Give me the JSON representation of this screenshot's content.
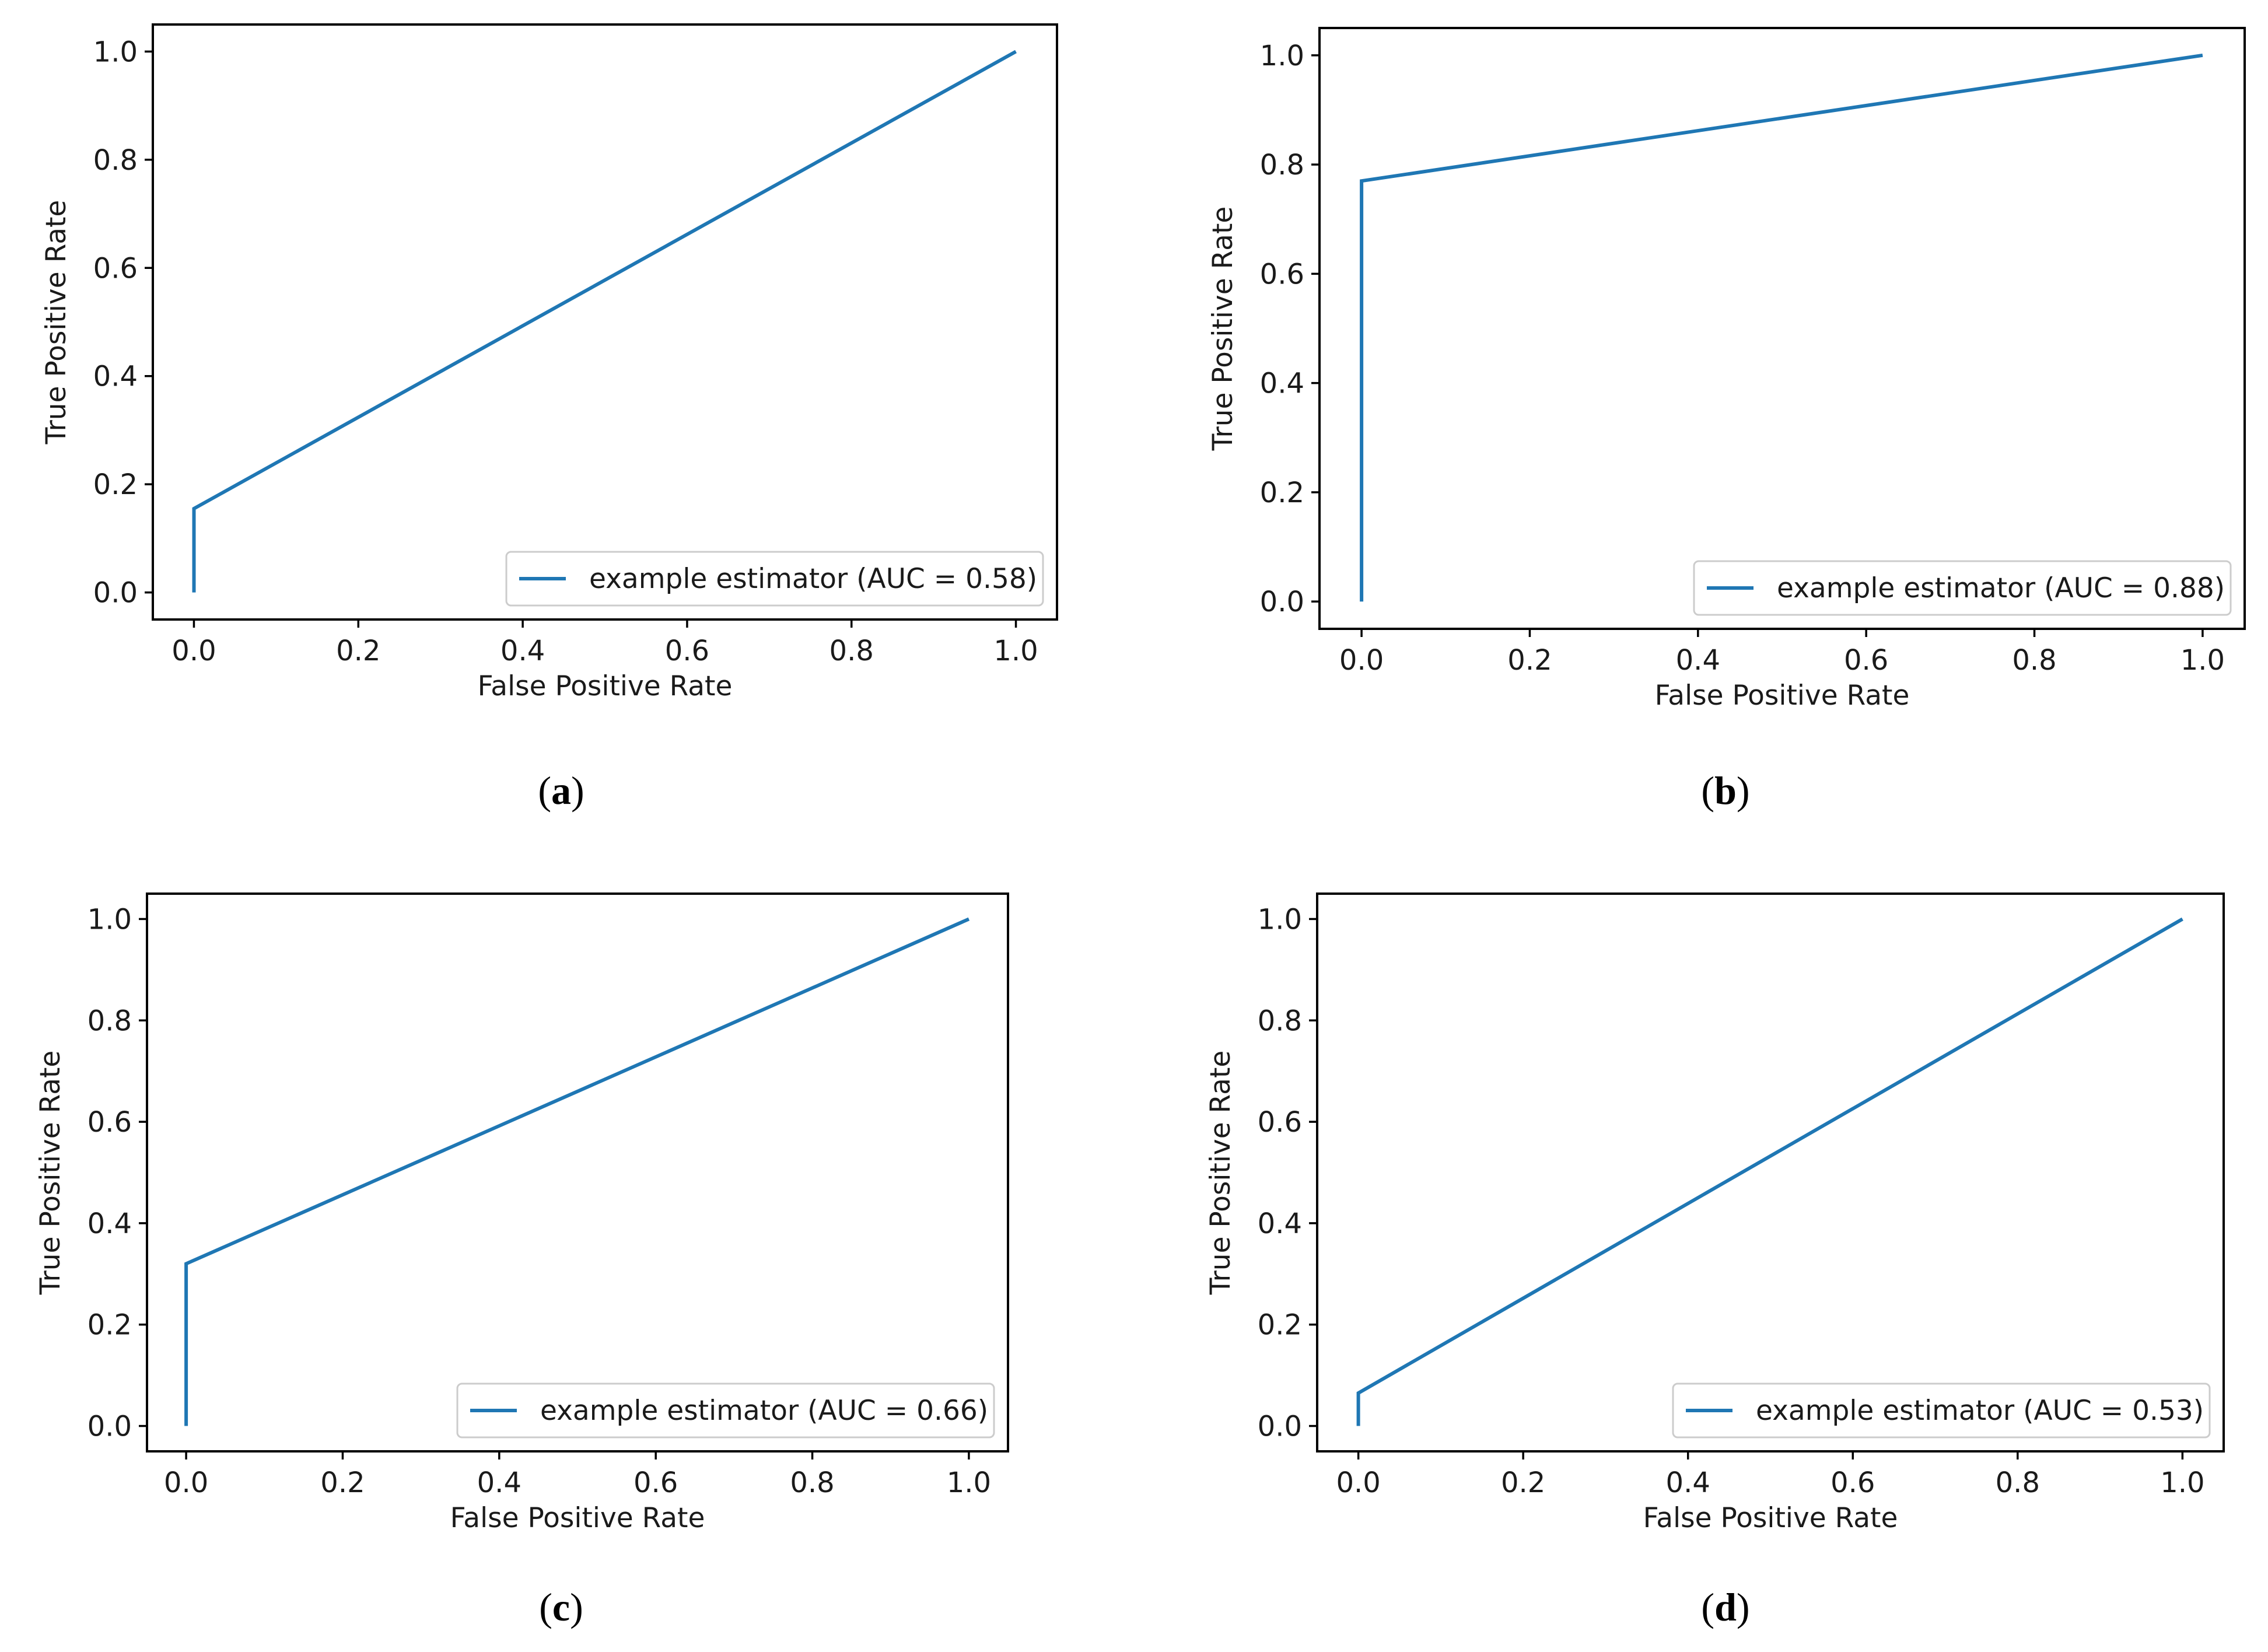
{
  "figure": {
    "line_color": "#1f77b4"
  },
  "chart_data": [
    {
      "type": "line",
      "caption_letter": "a",
      "xlabel": "False Positive Rate",
      "ylabel": "True Positive Rate",
      "xlim": [
        -0.05,
        1.05
      ],
      "ylim": [
        -0.05,
        1.05
      ],
      "xticks": [
        "0.0",
        "0.2",
        "0.4",
        "0.6",
        "0.8",
        "1.0"
      ],
      "yticks": [
        "0.0",
        "0.2",
        "0.4",
        "0.6",
        "0.8",
        "1.0"
      ],
      "series": [
        {
          "name": "example estimator (AUC = 0.58)",
          "x": [
            0.0,
            0.0,
            1.0
          ],
          "y": [
            0.0,
            0.155,
            1.0
          ]
        }
      ],
      "legend": "lower right"
    },
    {
      "type": "line",
      "caption_letter": "b",
      "xlabel": "False Positive Rate",
      "ylabel": "True Positive Rate",
      "xlim": [
        -0.05,
        1.05
      ],
      "ylim": [
        -0.05,
        1.05
      ],
      "xticks": [
        "0.0",
        "0.2",
        "0.4",
        "0.6",
        "0.8",
        "1.0"
      ],
      "yticks": [
        "0.0",
        "0.2",
        "0.4",
        "0.6",
        "0.8",
        "1.0"
      ],
      "series": [
        {
          "name": "example estimator (AUC = 0.88)",
          "x": [
            0.0,
            0.0,
            1.0
          ],
          "y": [
            0.0,
            0.77,
            1.0
          ]
        }
      ],
      "legend": "lower right"
    },
    {
      "type": "line",
      "caption_letter": "c",
      "xlabel": "False Positive Rate",
      "ylabel": "True Positive Rate",
      "xlim": [
        -0.05,
        1.05
      ],
      "ylim": [
        -0.05,
        1.05
      ],
      "xticks": [
        "0.0",
        "0.2",
        "0.4",
        "0.6",
        "0.8",
        "1.0"
      ],
      "yticks": [
        "0.0",
        "0.2",
        "0.4",
        "0.6",
        "0.8",
        "1.0"
      ],
      "series": [
        {
          "name": "example estimator (AUC = 0.66)",
          "x": [
            0.0,
            0.0,
            1.0
          ],
          "y": [
            0.0,
            0.32,
            1.0
          ]
        }
      ],
      "legend": "lower right"
    },
    {
      "type": "line",
      "caption_letter": "d",
      "xlabel": "False Positive Rate",
      "ylabel": "True Positive Rate",
      "xlim": [
        -0.05,
        1.05
      ],
      "ylim": [
        -0.05,
        1.05
      ],
      "xticks": [
        "0.0",
        "0.2",
        "0.4",
        "0.6",
        "0.8",
        "1.0"
      ],
      "yticks": [
        "0.0",
        "0.2",
        "0.4",
        "0.6",
        "0.8",
        "1.0"
      ],
      "series": [
        {
          "name": "example estimator (AUC = 0.53)",
          "x": [
            0.0,
            0.0,
            1.0
          ],
          "y": [
            0.0,
            0.065,
            1.0
          ]
        }
      ],
      "legend": "lower right"
    }
  ]
}
